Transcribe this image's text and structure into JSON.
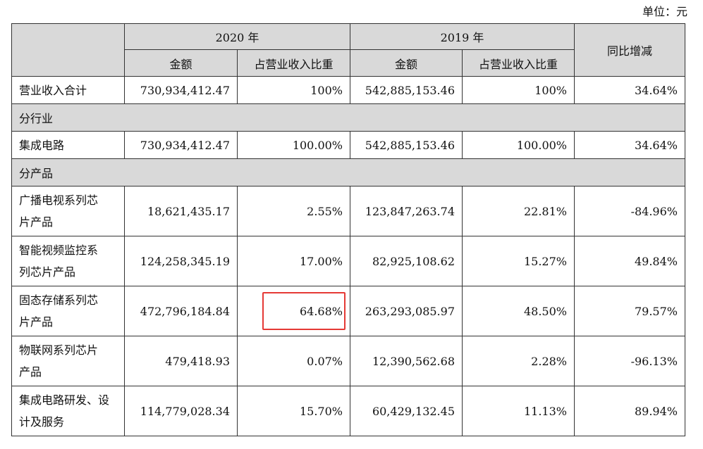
{
  "unit_label": "单位：元",
  "header": {
    "year_2020": "2020 年",
    "year_2019": "2019 年",
    "yoy": "同比增减",
    "amount": "金额",
    "ratio": "占营业收入比重"
  },
  "total_row": {
    "label": "营业收入合计",
    "v2020": "730,934,412.47",
    "r2020": "100%",
    "v2019": "542,885,153.46",
    "r2019": "100%",
    "yoy": "34.64%"
  },
  "section_industry": "分行业",
  "industry_row": {
    "label": "集成电路",
    "v2020": "730,934,412.47",
    "r2020": "100.00%",
    "v2019": "542,885,153.46",
    "r2019": "100.00%",
    "yoy": "34.64%"
  },
  "section_product": "分产品",
  "products": [
    {
      "label_l1": "广播电视系列芯",
      "label_l2": "片产品",
      "v2020": "18,621,435.17",
      "r2020": "2.55%",
      "v2019": "123,847,263.74",
      "r2019": "22.81%",
      "yoy": "-84.96%"
    },
    {
      "label_l1": "智能视频监控系",
      "label_l2": "列芯片产品",
      "v2020": "124,258,345.19",
      "r2020": "17.00%",
      "v2019": "82,925,108.62",
      "r2019": "15.27%",
      "yoy": "49.84%"
    },
    {
      "label_l1": "固态存储系列芯",
      "label_l2": "片产品",
      "v2020": "472,796,184.84",
      "r2020": "64.68%",
      "v2019": "263,293,085.97",
      "r2019": "48.50%",
      "yoy": "79.57%"
    },
    {
      "label_l1": "物联网系列芯片",
      "label_l2": "产品",
      "v2020": "479,418.93",
      "r2020": "0.07%",
      "v2019": "12,390,562.68",
      "r2019": "2.28%",
      "yoy": "-96.13%"
    },
    {
      "label_l1": "集成电路研发、设",
      "label_l2": "计及服务",
      "v2020": "114,779,028.34",
      "r2020": "15.70%",
      "v2019": "60,429,132.45",
      "r2019": "11.13%",
      "yoy": "89.94%"
    }
  ],
  "highlight_color": "#e53935"
}
